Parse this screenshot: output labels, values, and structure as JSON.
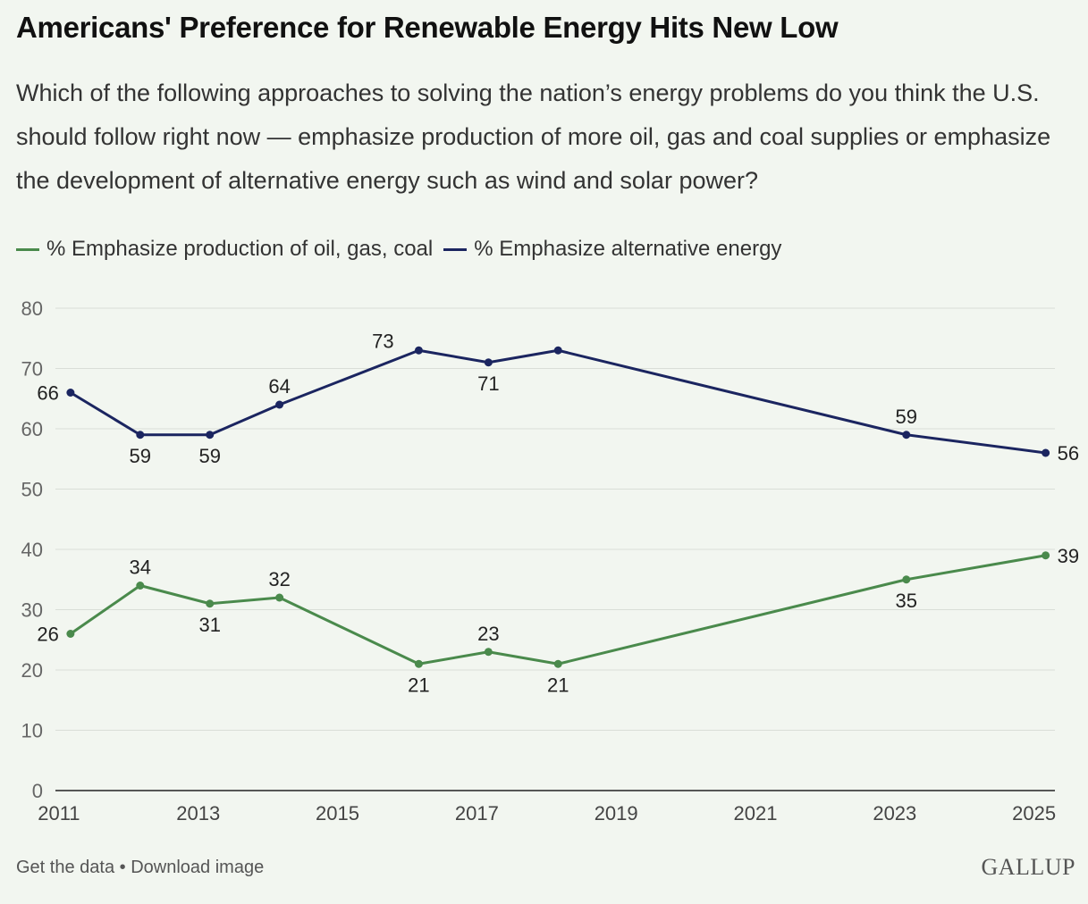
{
  "title": "Americans' Preference for Renewable Energy Hits New Low",
  "subtitle": "Which of the following approaches to solving the nation’s energy problems do you think the U.S. should follow right now — emphasize production of more oil, gas and coal supplies or emphasize the development of alternative energy such as wind and solar power?",
  "footer": {
    "get_data": "Get the data",
    "separator": "•",
    "download": "Download image"
  },
  "logo": "GALLUP",
  "colors": {
    "green": "#4a8a4c",
    "navy": "#1b2560",
    "grid": "#d9ded7",
    "background": "#f2f6f0"
  },
  "chart_data": {
    "type": "line",
    "title": "Americans' Preference for Renewable Energy Hits New Low",
    "xlabel": "",
    "ylabel": "",
    "ylim": [
      0,
      80
    ],
    "yticks": [
      0,
      10,
      20,
      30,
      40,
      50,
      60,
      70,
      80
    ],
    "xlim": [
      2010.95,
      2025.3
    ],
    "xticks": [
      "2011",
      "2013",
      "2015",
      "2017",
      "2019",
      "2021",
      "2023",
      "2025"
    ],
    "grid": true,
    "legend_position": "top-left",
    "series": [
      {
        "name": "% Emphasize production of oil, gas, coal",
        "color": "#4a8a4c",
        "points": [
          {
            "x": "2011-03",
            "y": 26
          },
          {
            "x": "2012-03",
            "y": 34
          },
          {
            "x": "2013-03",
            "y": 31
          },
          {
            "x": "2014-03",
            "y": 32
          },
          {
            "x": "2016-03",
            "y": 21
          },
          {
            "x": "2017-03",
            "y": 23
          },
          {
            "x": "2018-03",
            "y": 21
          },
          {
            "x": "2023-03",
            "y": 35
          },
          {
            "x": "2025-03",
            "y": 39
          }
        ],
        "label_pos": [
          "left",
          "above",
          "below",
          "above",
          "below",
          "above",
          "below",
          "below",
          "right"
        ]
      },
      {
        "name": "% Emphasize alternative energy",
        "color": "#1b2560",
        "points": [
          {
            "x": "2011-03",
            "y": 66
          },
          {
            "x": "2012-03",
            "y": 59
          },
          {
            "x": "2013-03",
            "y": 59
          },
          {
            "x": "2014-03",
            "y": 64
          },
          {
            "x": "2016-03",
            "y": 73
          },
          {
            "x": "2017-03",
            "y": 71
          },
          {
            "x": "2018-03",
            "y": 73
          },
          {
            "x": "2023-03",
            "y": 59
          },
          {
            "x": "2025-03",
            "y": 56
          }
        ],
        "label_pos": [
          "left",
          "below",
          "below",
          "above",
          "upper-left",
          "below",
          "none",
          "above",
          "right"
        ]
      }
    ]
  }
}
